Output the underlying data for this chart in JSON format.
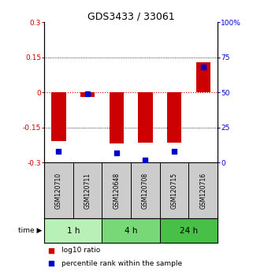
{
  "title": "GDS3433 / 33061",
  "samples": [
    "GSM120710",
    "GSM120711",
    "GSM120648",
    "GSM120708",
    "GSM120715",
    "GSM120716"
  ],
  "log10_ratio": [
    -0.21,
    -0.02,
    -0.22,
    -0.215,
    -0.215,
    0.13
  ],
  "percentile_rank": [
    8,
    49,
    7,
    2,
    8,
    68
  ],
  "ylim_left": [
    -0.3,
    0.3
  ],
  "ylim_right": [
    0,
    100
  ],
  "yticks_left": [
    -0.3,
    -0.15,
    0,
    0.15,
    0.3
  ],
  "yticks_right": [
    0,
    25,
    50,
    75,
    100
  ],
  "ytick_labels_left": [
    "-0.3",
    "-0.15",
    "0",
    "0.15",
    "0.3"
  ],
  "ytick_labels_right": [
    "0",
    "25",
    "50",
    "75",
    "100%"
  ],
  "time_groups": [
    {
      "label": "1 h",
      "samples": [
        0,
        1
      ],
      "color": "#b8f0b8"
    },
    {
      "label": "4 h",
      "samples": [
        2,
        3
      ],
      "color": "#78d878"
    },
    {
      "label": "24 h",
      "samples": [
        4,
        5
      ],
      "color": "#48c048"
    }
  ],
  "bar_color_red": "#cc0000",
  "bar_color_blue": "#0000cc",
  "sample_box_color": "#cccccc",
  "zero_line_color": "#cc0000",
  "grid_line_color": "#000000",
  "bar_width": 0.5,
  "legend_red_label": "log10 ratio",
  "legend_blue_label": "percentile rank within the sample",
  "time_label": "time"
}
